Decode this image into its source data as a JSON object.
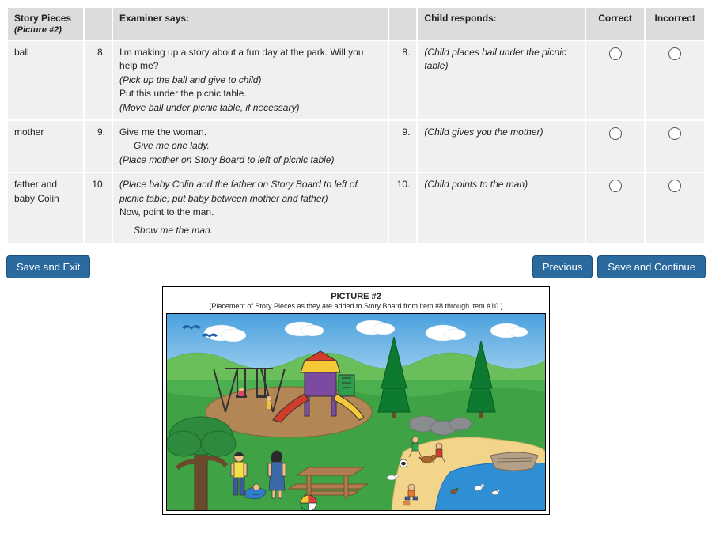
{
  "table": {
    "headers": {
      "storyPieces": "Story Pieces",
      "pictureRef": "(Picture #2)",
      "examiner": "Examiner says:",
      "childResponds": "Child responds:",
      "correct": "Correct",
      "incorrect": "Incorrect"
    },
    "rows": [
      {
        "piece": "ball",
        "num": "8.",
        "examiner_lines": [
          {
            "text": "I'm making up a story about a fun day at the park. Will you help me?",
            "italic": false
          },
          {
            "text": "(Pick up the ball and give to child)",
            "italic": true
          },
          {
            "text": "Put this under the picnic table.",
            "italic": false
          },
          {
            "text": "(Move ball under picnic table, if necessary)",
            "italic": true
          }
        ],
        "respNum": "8.",
        "response": "(Child places ball under the picnic table)"
      },
      {
        "piece": "mother",
        "num": "9.",
        "examiner_lines": [
          {
            "text": "Give me the woman.",
            "italic": false
          },
          {
            "text": "Give me one lady.",
            "italic": true,
            "indent": true
          },
          {
            "text": "(Place mother on Story Board to left of picnic table)",
            "italic": true
          }
        ],
        "respNum": "9.",
        "response": "(Child gives you the mother)"
      },
      {
        "piece": "father and baby Colin",
        "num": "10.",
        "examiner_lines": [
          {
            "text": "(Place baby Colin and the father on Story Board to left of picnic table; put baby between mother and father)",
            "italic": true
          },
          {
            "text": "Now, point to the man.",
            "italic": false
          },
          {
            "text": "Show me the man.",
            "italic": true,
            "indent": true,
            "gap": true
          }
        ],
        "respNum": "10.",
        "response": "(Child points to the man)"
      }
    ]
  },
  "buttons": {
    "saveExit": "Save and Exit",
    "previous": "Previous",
    "saveContinue": "Save and Continue"
  },
  "picture": {
    "title": "PICTURE #2",
    "subtitle": "(Placement of Story Pieces as they are added to Story Board from item #8 through item #10.)"
  },
  "colors": {
    "sky_top": "#4aa0de",
    "sky_bottom": "#a8d5f0",
    "grass": "#4caf50",
    "grass_dark": "#2e8b3e",
    "hill": "#6bbf5a",
    "sand": "#f2d48a",
    "water": "#2f8fd4",
    "tree_green": "#0d7a2f",
    "cloud": "#ffffff",
    "play_red": "#d23c2a",
    "play_yellow": "#f6c936",
    "play_purple": "#7c4aa0",
    "rock": "#8a8d90",
    "boat": "#b4a089",
    "picnic": "#b07c4f",
    "ball_stripe": "#e23b3b",
    "bird": "#1e5fa8",
    "dirt": "#b38655"
  }
}
